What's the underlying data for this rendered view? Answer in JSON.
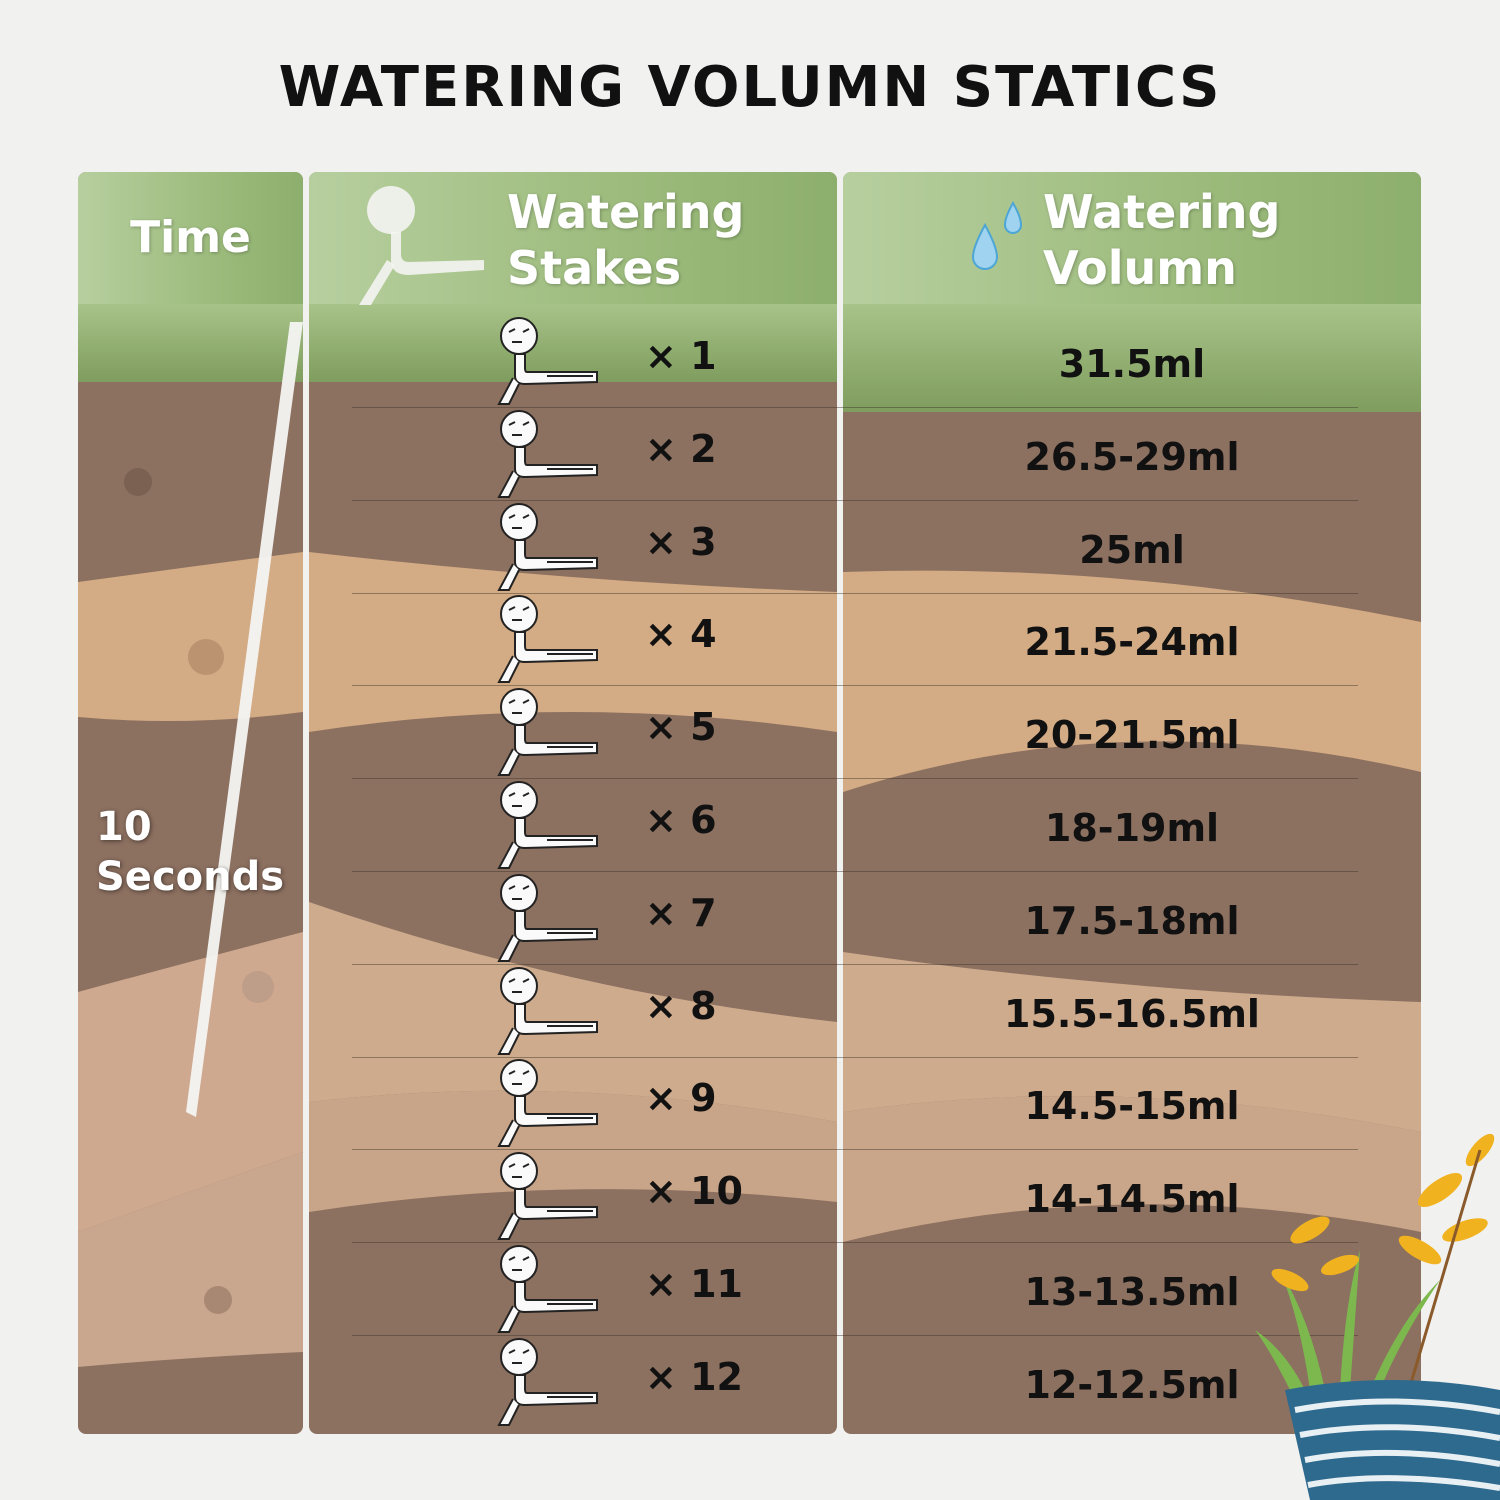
{
  "title": "WATERING VOLUMN STATICS",
  "headers": {
    "time": "Time",
    "stakes_line1": "Watering",
    "stakes_line2": "Stakes",
    "volume_line1": "Watering",
    "volume_line2": "Volumn"
  },
  "time_value_line1": "10",
  "time_value_line2": "Seconds",
  "rows": [
    {
      "stakes": "× 1",
      "volume": "31.5ml"
    },
    {
      "stakes": "× 2",
      "volume": "26.5-29ml"
    },
    {
      "stakes": "× 3",
      "volume": "25ml"
    },
    {
      "stakes": "× 4",
      "volume": "21.5-24ml"
    },
    {
      "stakes": "× 5",
      "volume": "20-21.5ml"
    },
    {
      "stakes": "× 6",
      "volume": "18-19ml"
    },
    {
      "stakes": "× 7",
      "volume": "17.5-18ml"
    },
    {
      "stakes": "× 8",
      "volume": "15.5-16.5ml"
    },
    {
      "stakes": "× 9",
      "volume": "14.5-15ml"
    },
    {
      "stakes": "× 10",
      "volume": "14-14.5ml"
    },
    {
      "stakes": "× 11",
      "volume": "13-13.5ml"
    },
    {
      "stakes": "× 12",
      "volume": "12-12.5ml"
    }
  ],
  "icons": {
    "header_stake": "watering-stake-icon",
    "header_drops": "water-drops-icon",
    "row_stake": "watering-stake-icon",
    "decoration": "potted-plant-icon"
  },
  "colors": {
    "header_green": "#9cbb7c",
    "soil_dark": "#8a6f5f",
    "soil_light": "#d2aa83",
    "grass": "#7c9c5c"
  }
}
